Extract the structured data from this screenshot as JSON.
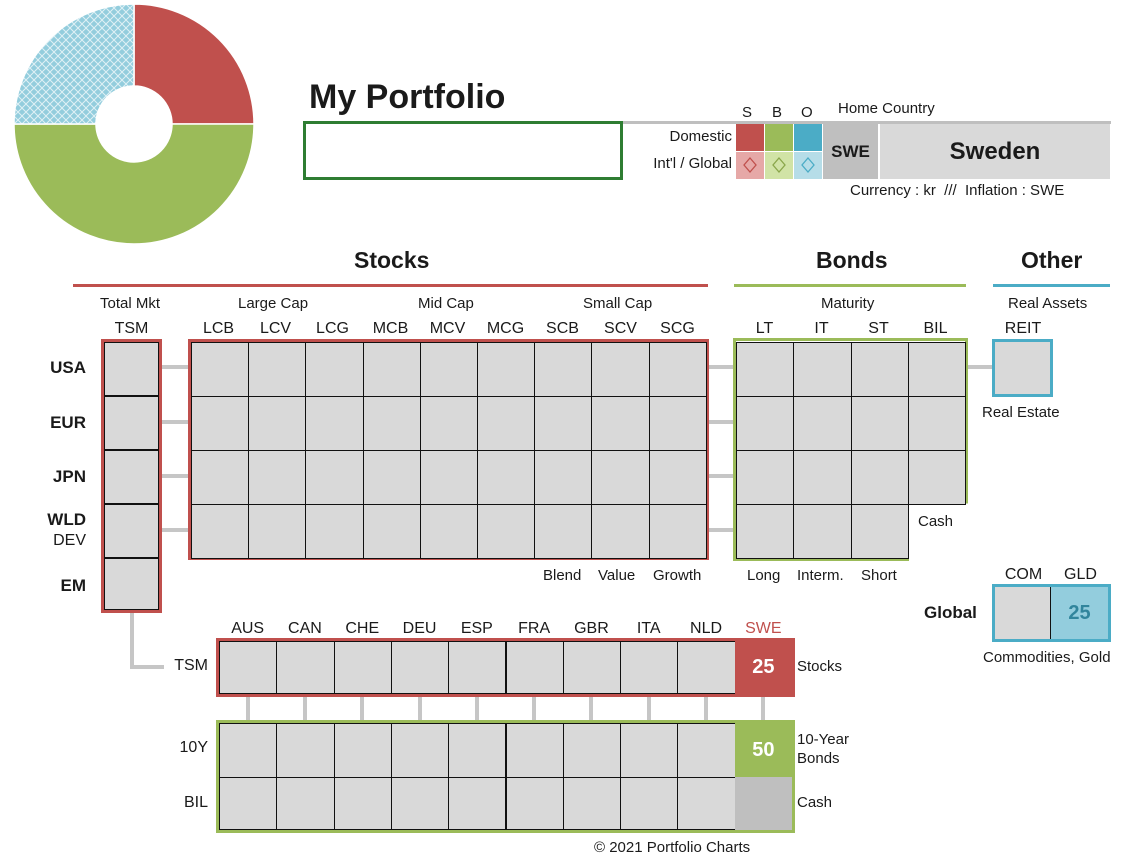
{
  "header": {
    "title": "My Portfolio",
    "portfolio_name_value": "",
    "sbo": [
      "S",
      "B",
      "O"
    ],
    "home_country_label": "Home Country",
    "domestic_label": "Domestic",
    "intl_label": "Int'l / Global",
    "country_code": "SWE",
    "country_name": "Sweden",
    "currency_line": "Currency : kr  ///  Inflation : SWE"
  },
  "donut": {
    "slices": [
      {
        "label": "S",
        "value": 25,
        "color": "#c0504d"
      },
      {
        "label": "B",
        "value": 50,
        "color": "#9bbb59"
      },
      {
        "label": "O",
        "value": 25,
        "color": "#93cddd"
      }
    ]
  },
  "sections": {
    "stocks": "Stocks",
    "bonds": "Bonds",
    "other": "Other"
  },
  "stocks": {
    "groups": [
      "Total Mkt",
      "Large Cap",
      "Mid Cap",
      "Small Cap"
    ],
    "columns": [
      "TSM",
      "LCB",
      "LCV",
      "LCG",
      "MCB",
      "MCV",
      "MCG",
      "SCB",
      "SCV",
      "SCG"
    ],
    "style_labels": [
      "Blend",
      "Value",
      "Growth"
    ]
  },
  "bonds": {
    "group": "Maturity",
    "columns": [
      "LT",
      "IT",
      "ST",
      "BIL"
    ],
    "bottom_labels": [
      "Long",
      "Interm.",
      "Short"
    ],
    "cash_label": "Cash"
  },
  "other": {
    "group": "Real Assets",
    "reit": "REIT",
    "real_estate": "Real Estate",
    "com": "COM",
    "gld": "GLD",
    "global_label": "Global",
    "gld_value": "25",
    "commodities_label": "Commodities, Gold"
  },
  "regions": [
    "USA",
    "EUR",
    "JPN",
    "WLD",
    "EM"
  ],
  "regions_sub": {
    "wld": "DEV"
  },
  "countries": {
    "codes": [
      "AUS",
      "CAN",
      "CHE",
      "DEU",
      "ESP",
      "FRA",
      "GBR",
      "ITA",
      "NLD",
      "SWE"
    ],
    "tsm_label": "TSM",
    "tsm_value": "25",
    "stocks_label": "Stocks",
    "row_10y": "10Y",
    "row_bil": "BIL",
    "bonds_value": "50",
    "bonds_label_1": "10-Year",
    "bonds_label_2": "Bonds",
    "cash_label": "Cash"
  },
  "footer": "© 2021 Portfolio Charts"
}
